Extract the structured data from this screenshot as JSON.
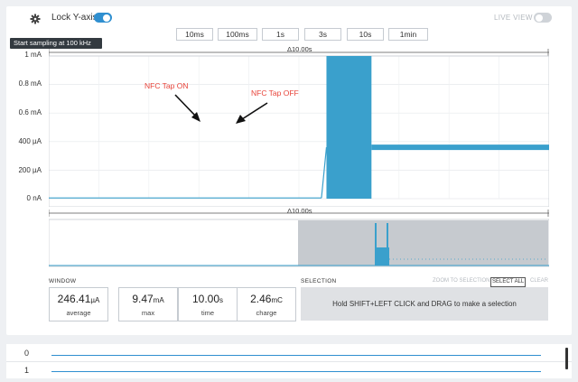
{
  "header": {
    "lock_label": "Lock Y-axis",
    "lock_on": true,
    "live_label": "LIVE VIEW",
    "live_on": false,
    "tooltip": "Start sampling at 100 kHz"
  },
  "window_buttons": [
    "10ms",
    "100ms",
    "1s",
    "3s",
    "10s",
    "1min"
  ],
  "chart_data": {
    "type": "line",
    "title": "",
    "xlabel": "",
    "ylabel": "",
    "duration_label": "Δ10.00s",
    "y_ticks": [
      "1 mA",
      "0.8 mA",
      "0.6 mA",
      "400 µA",
      "200 µA",
      "0 nA"
    ],
    "ylim_uA": [
      0,
      1000
    ],
    "series": [
      {
        "points_uA": [
          [
            0,
            5
          ],
          [
            5.45,
            5
          ],
          [
            5.55,
            360
          ],
          [
            5.55,
            1000
          ],
          [
            6.45,
            1000
          ],
          [
            6.45,
            360
          ],
          [
            10,
            360
          ]
        ]
      }
    ],
    "annotations": [
      "NFC Tap ON",
      "NFC Tap OFF"
    ]
  },
  "overview": {
    "duration_label": "Δ10.00s"
  },
  "window_stats": {
    "title": "WINDOW",
    "items": [
      {
        "value": "246.41",
        "unit": "µA",
        "label": "average"
      },
      {
        "value": "9.47",
        "unit": "mA",
        "label": "max"
      },
      {
        "value": "10.00",
        "unit": "s",
        "label": "time"
      },
      {
        "value": "2.46",
        "unit": "mC",
        "label": "charge"
      }
    ]
  },
  "selection": {
    "title": "SELECTION",
    "zoom_label": "ZOOM TO SELECTION",
    "select_all_label": "SELECT ALL",
    "clear_label": "CLEAR",
    "hint": "Hold SHIFT+LEFT CLICK and DRAG to make a selection"
  },
  "channels": [
    "0",
    "1"
  ],
  "colors": {
    "trace": "#3aa0cc",
    "accent": "#2f8fd0",
    "annotation": "#e8443a"
  }
}
